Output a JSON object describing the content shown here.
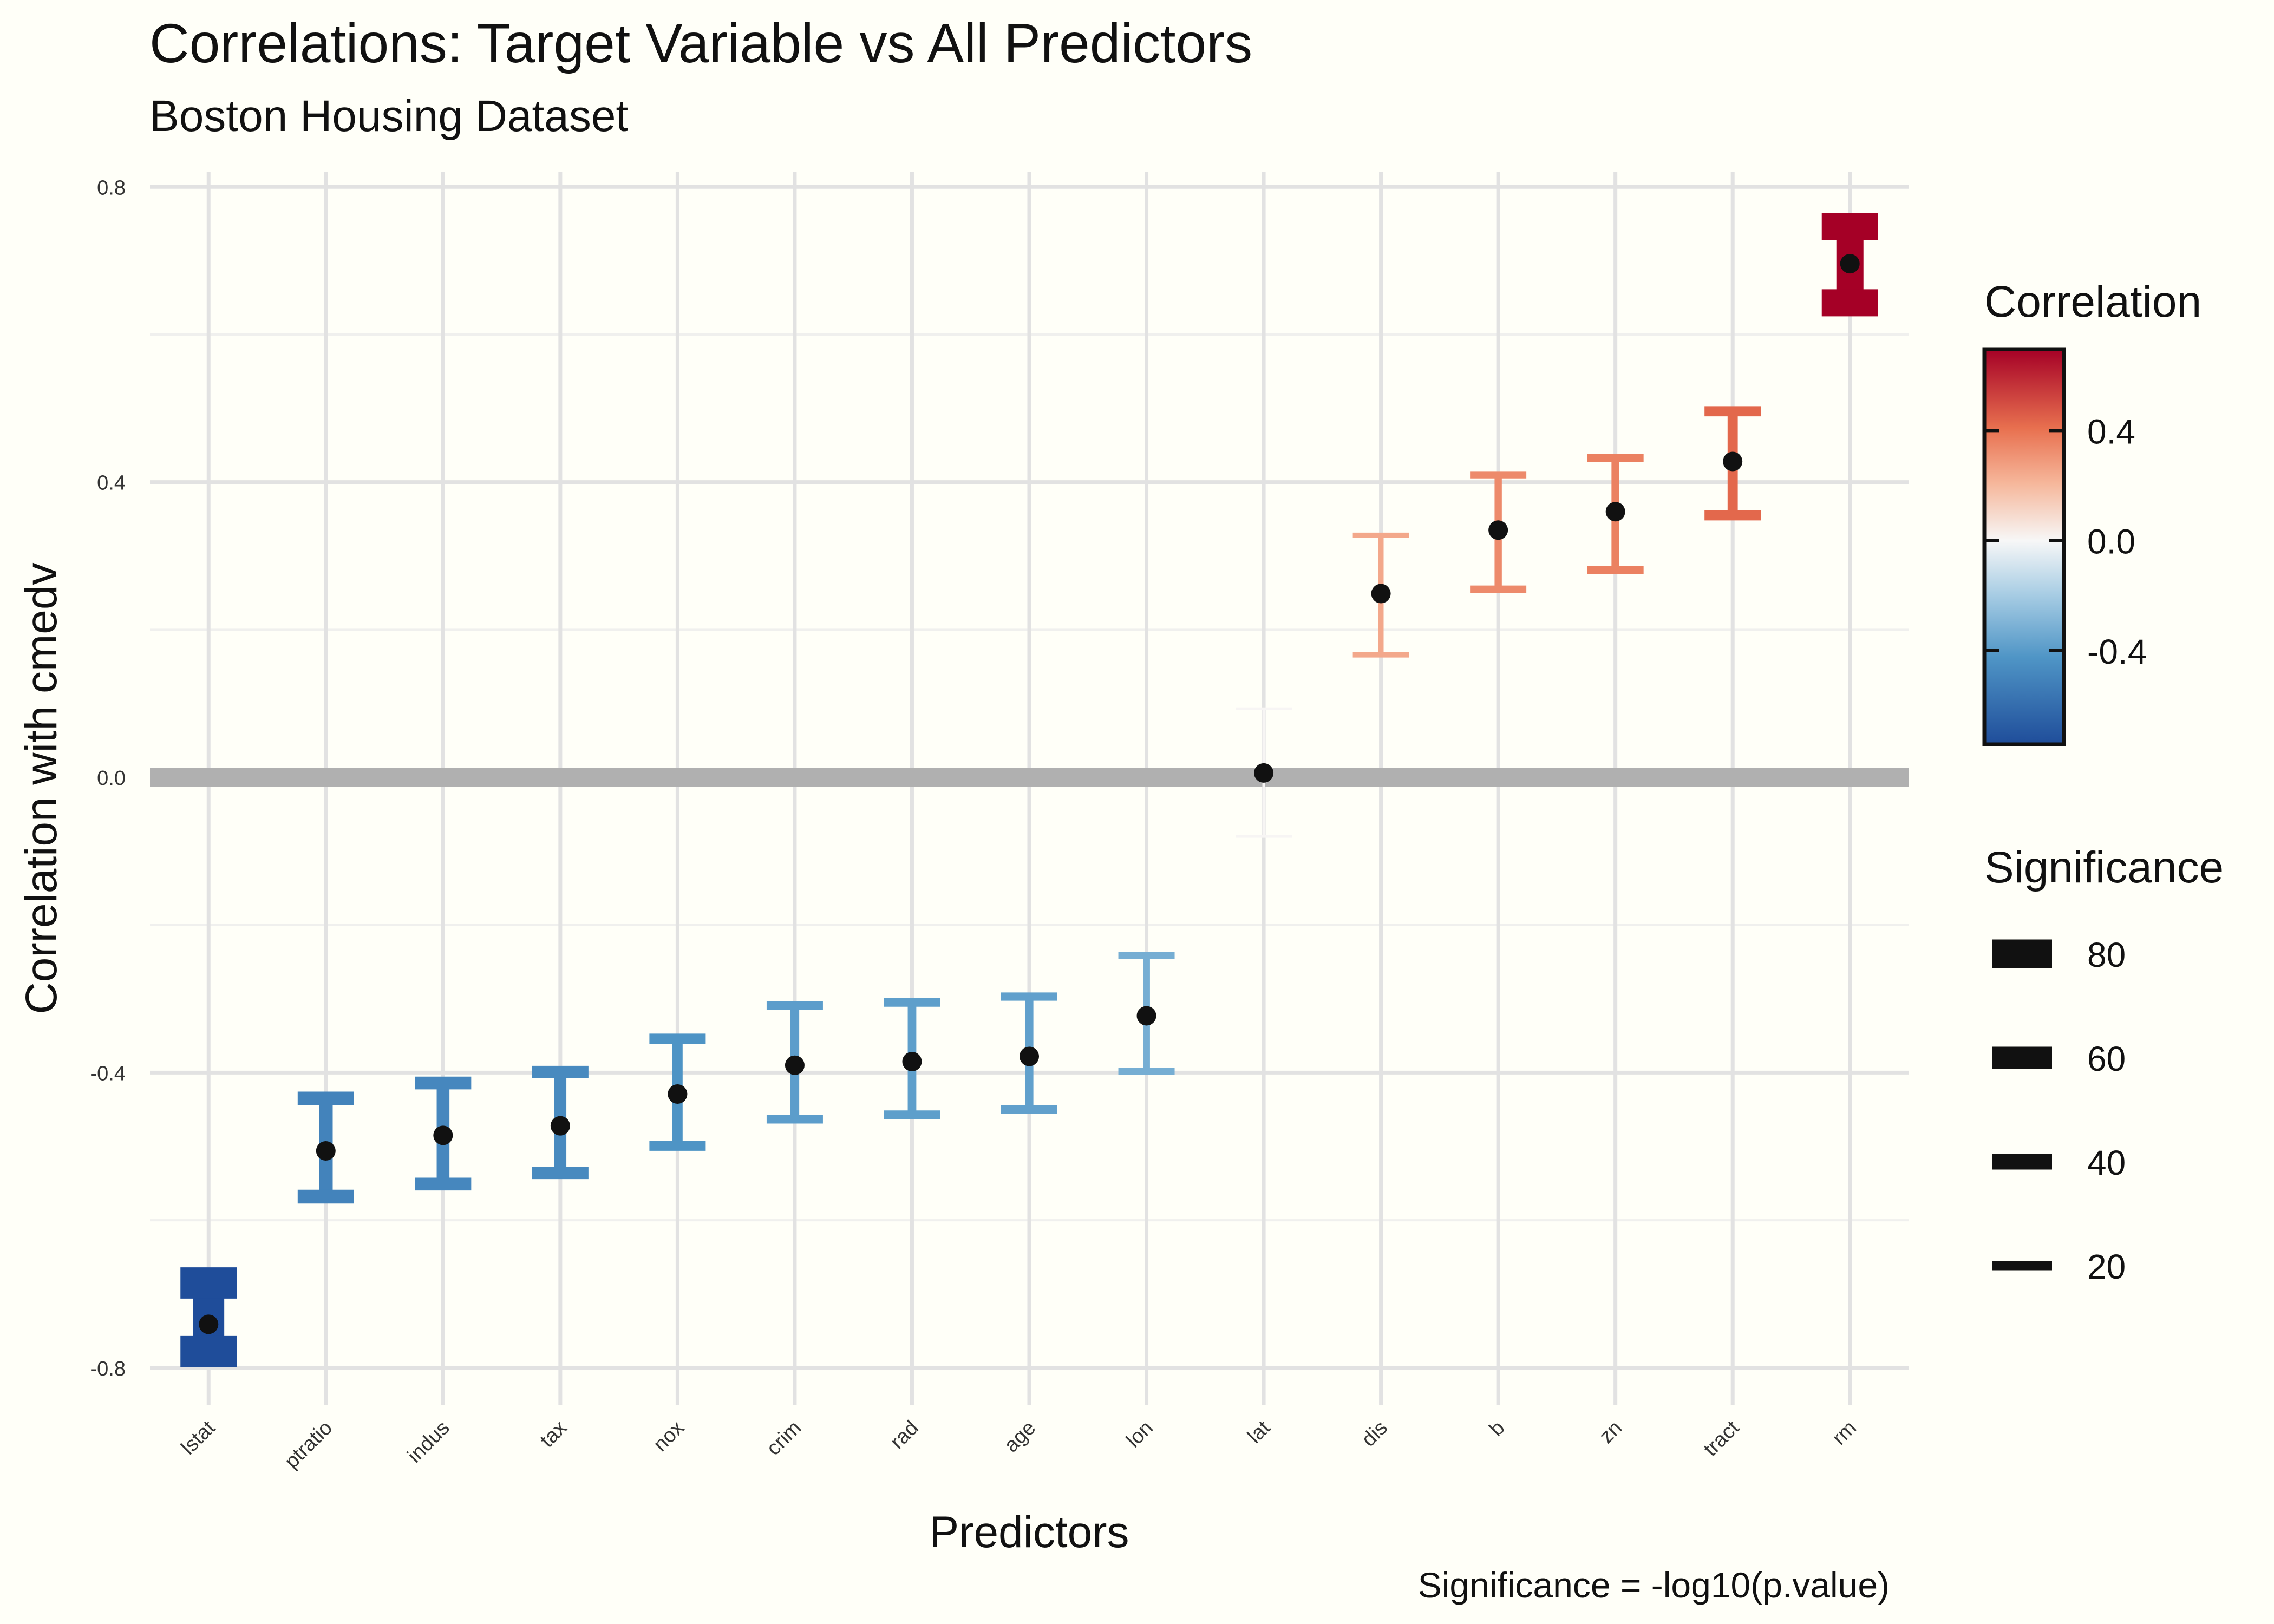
{
  "chart_data": {
    "type": "errorbar",
    "title": "Correlations: Target Variable vs All Predictors",
    "subtitle": "Boston Housing Dataset",
    "xlabel": "Predictors",
    "ylabel": "Correlation with cmedv",
    "caption": "Significance = -log10(p.value)",
    "ylim": [
      -0.85,
      0.82
    ],
    "yticks": [
      -0.8,
      -0.4,
      0.0,
      0.4,
      0.8
    ],
    "ytick_labels": [
      "-0.8",
      "-0.4",
      "0.0",
      "0.4",
      "0.8"
    ],
    "grid": true,
    "categories": [
      "lstat",
      "ptratio",
      "indus",
      "tax",
      "nox",
      "crim",
      "rad",
      "age",
      "lon",
      "lat",
      "dis",
      "b",
      "zn",
      "tract",
      "rm"
    ],
    "correlation": [
      -0.741,
      -0.506,
      -0.485,
      -0.472,
      -0.429,
      -0.39,
      -0.385,
      -0.378,
      -0.323,
      0.006,
      0.249,
      0.335,
      0.36,
      0.428,
      0.696
    ],
    "ci_lower": [
      -0.778,
      -0.568,
      -0.551,
      -0.536,
      -0.499,
      -0.463,
      -0.457,
      -0.45,
      -0.398,
      -0.08,
      0.166,
      0.255,
      0.281,
      0.355,
      0.643
    ],
    "ci_upper": [
      -0.685,
      -0.435,
      -0.414,
      -0.399,
      -0.354,
      -0.309,
      -0.305,
      -0.297,
      -0.241,
      0.093,
      0.328,
      0.41,
      0.433,
      0.496,
      0.746
    ],
    "significance": [
      88,
      34,
      31,
      29,
      23,
      19,
      18,
      17,
      13,
      0.05,
      8,
      14,
      16,
      23,
      75
    ],
    "zero_line": 0.0,
    "color_legend": {
      "title": "Correlation",
      "ticks": [
        0.4,
        0.0,
        -0.4
      ],
      "tick_labels": [
        "0.4",
        "0.0",
        "-0.4"
      ],
      "range": [
        -0.741,
        0.696
      ],
      "low_color": "#1f4d9a",
      "mid_color": "#f7f7f7",
      "high_color": "#a50026"
    },
    "size_legend": {
      "title": "Significance",
      "values": [
        80,
        60,
        40,
        20
      ],
      "labels": [
        "80",
        "60",
        "40",
        "20"
      ]
    }
  }
}
